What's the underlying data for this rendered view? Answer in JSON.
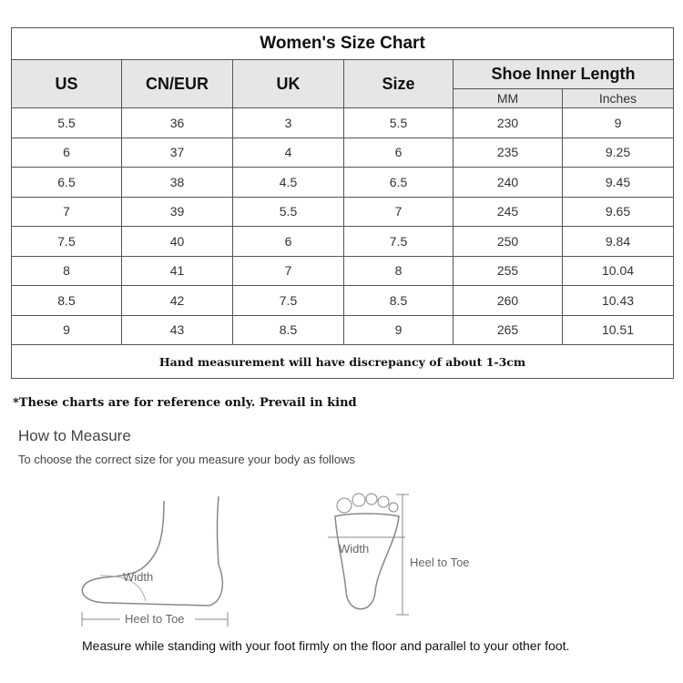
{
  "title": "Women's Size Chart",
  "headers": {
    "us": "US",
    "cneur": "CN/EUR",
    "uk": "UK",
    "size": "Size",
    "inner": "Shoe Inner Length",
    "mm": "MM",
    "inches": "Inches"
  },
  "rows": [
    [
      "5.5",
      "36",
      "3",
      "5.5",
      "230",
      "9"
    ],
    [
      "6",
      "37",
      "4",
      "6",
      "235",
      "9.25"
    ],
    [
      "6.5",
      "38",
      "4.5",
      "6.5",
      "240",
      "9.45"
    ],
    [
      "7",
      "39",
      "5.5",
      "7",
      "245",
      "9.65"
    ],
    [
      "7.5",
      "40",
      "6",
      "7.5",
      "250",
      "9.84"
    ],
    [
      "8",
      "41",
      "7",
      "8",
      "255",
      "10.04"
    ],
    [
      "8.5",
      "42",
      "7.5",
      "8.5",
      "260",
      "10.43"
    ],
    [
      "9",
      "43",
      "8.5",
      "9",
      "265",
      "10.51"
    ]
  ],
  "footer": "Hand measurement will have discrepancy of about 1-3cm",
  "note": "*These charts are for reference only. Prevail in kind",
  "how_title": "How to Measure",
  "how_subtitle": "To choose the correct size for you measure your body as follows",
  "side_labels": {
    "width": "Width",
    "heel_to_toe": "Heel to Toe"
  },
  "sole_labels": {
    "width": "Width",
    "heel_to_toe": "Heel to Toe"
  },
  "caption": "Measure while standing with your foot firmly on the floor and parallel to your other foot."
}
